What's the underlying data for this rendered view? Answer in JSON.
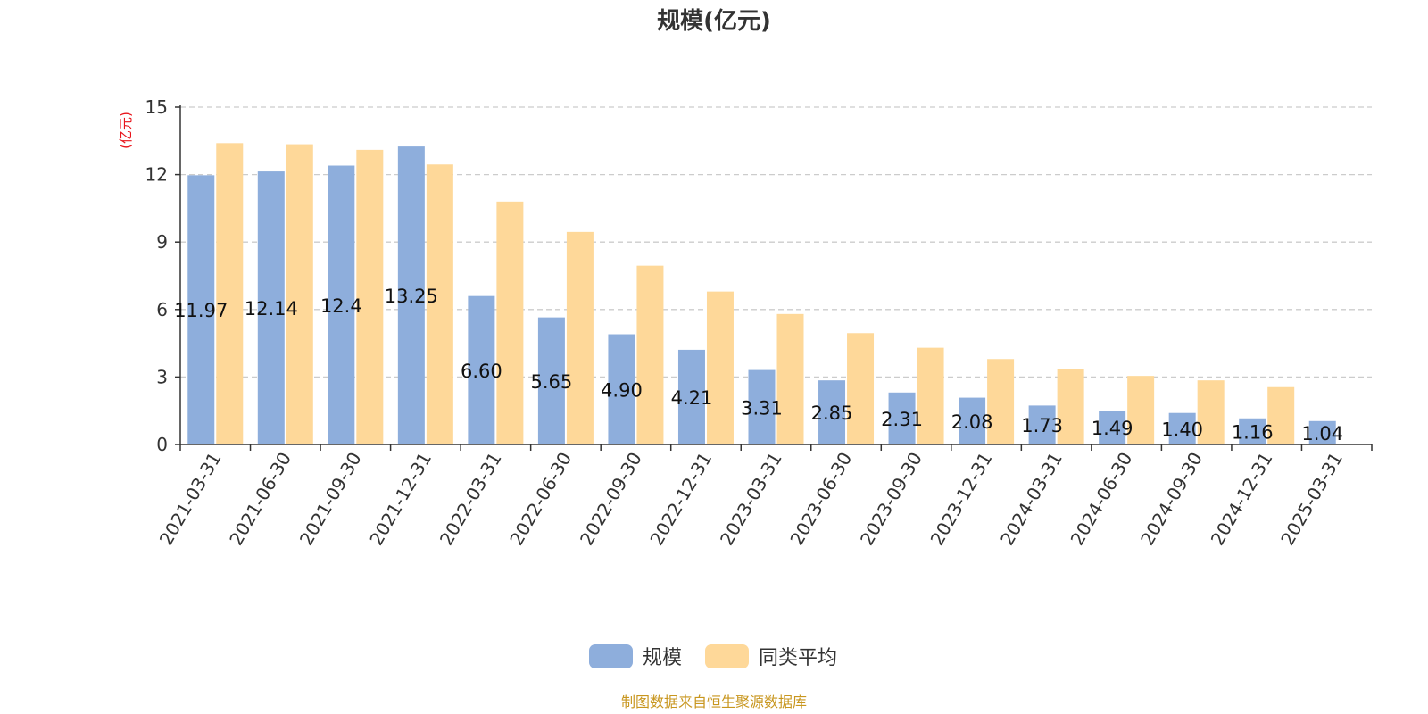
{
  "chart_data": {
    "type": "bar",
    "title": "规模(亿元)",
    "ylabel": "(亿元)",
    "ylim": [
      0,
      15
    ],
    "yticks": [
      0,
      3,
      6,
      9,
      12,
      15
    ],
    "grid": true,
    "legend_position": "bottom-center",
    "categories": [
      "2021-03-31",
      "2021-06-30",
      "2021-09-30",
      "2021-12-31",
      "2022-03-31",
      "2022-06-30",
      "2022-09-30",
      "2022-12-31",
      "2023-03-31",
      "2023-06-30",
      "2023-09-30",
      "2023-12-31",
      "2024-03-31",
      "2024-06-30",
      "2024-09-30",
      "2024-12-31",
      "2025-03-31"
    ],
    "series": [
      {
        "name": "规模",
        "color": "#8eaedc",
        "values": [
          11.97,
          12.14,
          12.4,
          13.25,
          6.6,
          5.65,
          4.9,
          4.21,
          3.31,
          2.85,
          2.31,
          2.08,
          1.73,
          1.49,
          1.4,
          1.16,
          1.04
        ],
        "labels": [
          "11.97",
          "12.14",
          "12.4",
          "13.25",
          "6.60",
          "5.65",
          "4.90",
          "4.21",
          "3.31",
          "2.85",
          "2.31",
          "2.08",
          "1.73",
          "1.49",
          "1.40",
          "1.16",
          "1.04"
        ]
      },
      {
        "name": "同类平均",
        "color": "#fed899",
        "values": [
          13.4,
          13.35,
          13.1,
          12.45,
          10.8,
          9.45,
          7.95,
          6.8,
          5.8,
          4.95,
          4.3,
          3.8,
          3.35,
          3.05,
          2.85,
          2.55,
          null
        ]
      }
    ]
  },
  "footer": {
    "source": "制图数据来自恒生聚源数据库"
  }
}
